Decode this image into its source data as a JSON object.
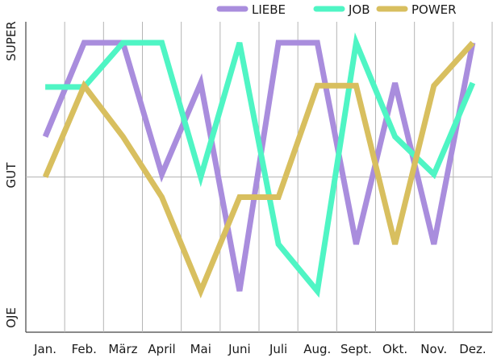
{
  "chart_data": {
    "type": "line",
    "categories": [
      "Jan.",
      "Feb.",
      "März",
      "April",
      "Mai",
      "Juni",
      "Juli",
      "Aug.",
      "Sept.",
      "Okt.",
      "Nov.",
      "Dez."
    ],
    "y_levels": [
      "OJE",
      "GUT",
      "SUPER"
    ],
    "ylim": [
      0,
      2
    ],
    "grid": true,
    "legend_position": "top-right",
    "series": [
      {
        "name": "LIEBE",
        "color": "#a98ddd",
        "values": [
          1.3,
          2.0,
          2.0,
          1.02,
          1.7,
          0.15,
          2.0,
          2.0,
          0.5,
          1.7,
          0.5,
          2.0
        ]
      },
      {
        "name": "JOB",
        "color": "#4ff5c4",
        "values": [
          1.67,
          1.67,
          2.0,
          2.0,
          1.0,
          2.0,
          0.5,
          0.15,
          2.0,
          1.3,
          1.02,
          1.7
        ]
      },
      {
        "name": "POWER",
        "color": "#d8bf5f",
        "values": [
          1.0,
          1.68,
          1.3,
          0.85,
          0.15,
          0.85,
          0.85,
          1.68,
          1.68,
          0.5,
          1.68,
          2.0
        ]
      }
    ]
  }
}
